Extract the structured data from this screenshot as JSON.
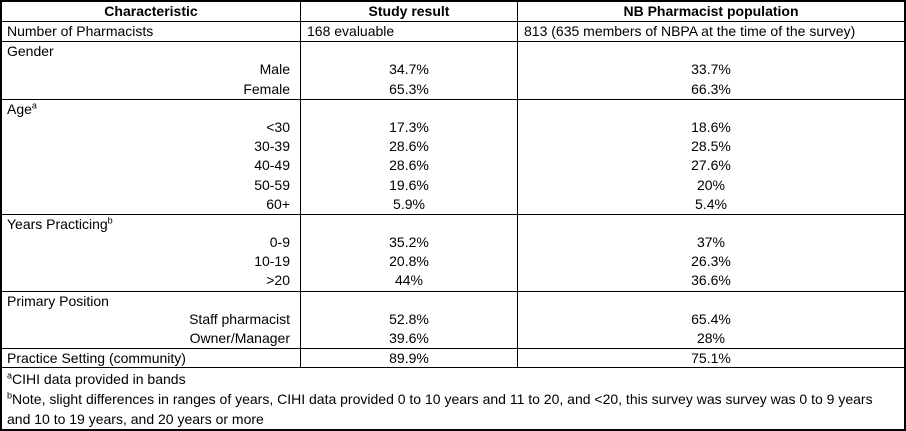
{
  "table": {
    "columns": {
      "characteristic": "Characteristic",
      "study_result": "Study result",
      "nb_population": "NB Pharmacist population"
    },
    "rows": [
      {
        "label": "Number of Pharmacists",
        "study": "168 evaluable",
        "nb": "813 (635 members of NBPA at the time of the survey)"
      },
      {
        "label": "Gender"
      },
      {
        "label": "Male",
        "study": "34.7%",
        "nb": "33.7%"
      },
      {
        "label": "Female",
        "study": "65.3%",
        "nb": "66.3%"
      },
      {
        "label": "Age",
        "sup": "a"
      },
      {
        "label": "<30",
        "study": "17.3%",
        "nb": "18.6%"
      },
      {
        "label": "30-39",
        "study": "28.6%",
        "nb": "28.5%"
      },
      {
        "label": "40-49",
        "study": "28.6%",
        "nb": "27.6%"
      },
      {
        "label": "50-59",
        "study": "19.6%",
        "nb": "20%"
      },
      {
        "label": "60+",
        "study": "5.9%",
        "nb": "5.4%"
      },
      {
        "label": "Years Practicing",
        "sup": "b"
      },
      {
        "label": "0-9",
        "study": "35.2%",
        "nb": "37%"
      },
      {
        "label": "10-19",
        "study": "20.8%",
        "nb": "26.3%"
      },
      {
        "label": ">20",
        "study": "44%",
        "nb": "36.6%"
      },
      {
        "label": "Primary Position"
      },
      {
        "label": "Staff pharmacist",
        "study": "52.8%",
        "nb": "65.4%"
      },
      {
        "label": "Owner/Manager",
        "study": "39.6%",
        "nb": "28%"
      },
      {
        "label": "Practice Setting (community)",
        "study": "89.9%",
        "nb": "75.1%"
      }
    ],
    "footnotes": [
      {
        "sup": "a",
        "text": "CIHI data provided in bands"
      },
      {
        "sup": "b",
        "text": "Note, slight differences in ranges of years, CIHI data provided 0 to 10 years and 11 to 20, and <20, this survey was survey was 0 to 9 years and 10 to 19 years, and 20 years or more"
      }
    ]
  },
  "colors": {
    "text": "#000000",
    "border": "#000000",
    "background": "#ffffff"
  }
}
